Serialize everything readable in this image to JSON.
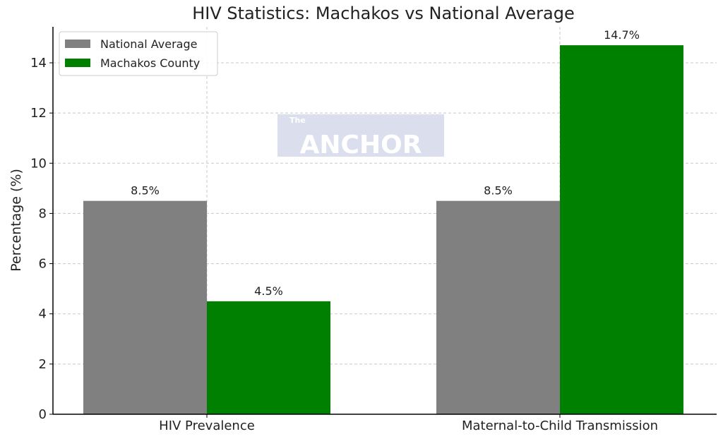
{
  "chart_data": {
    "type": "bar",
    "title": "HIV Statistics: Machakos vs National Average",
    "xlabel": "",
    "ylabel": "Percentage (%)",
    "categories": [
      "HIV Prevalence",
      "Maternal-to-Child Transmission"
    ],
    "series": [
      {
        "name": "National Average",
        "values": [
          8.5,
          8.5
        ],
        "labels": [
          "8.5%",
          "8.5%"
        ],
        "color": "#808080"
      },
      {
        "name": "Machakos County",
        "values": [
          4.5,
          14.7
        ],
        "labels": [
          "4.5%",
          "14.7%"
        ],
        "color": "#008000"
      }
    ],
    "ylim": [
      0,
      15.4
    ],
    "yticks": [
      0,
      2,
      4,
      6,
      8,
      10,
      12,
      14
    ],
    "grid": true,
    "legend": "top-left"
  },
  "watermark": {
    "small": "The",
    "big": "ANCHOR"
  }
}
